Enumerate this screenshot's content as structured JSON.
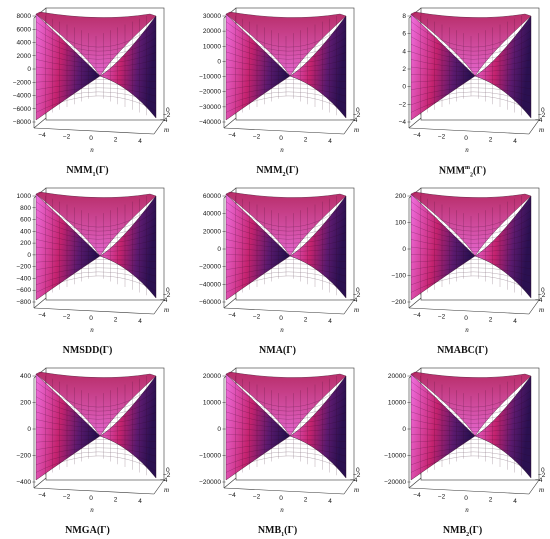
{
  "chart_data": [
    {
      "type": "surface",
      "caption": {
        "base": "NMM",
        "sub": "1",
        "sup": "",
        "suffix": "(Γ)"
      },
      "xlabel": "n",
      "ylabel": "m",
      "zticks": [
        "8000",
        "6000",
        "4000",
        "2000",
        "0",
        "−2000",
        "−4000",
        "−6000",
        "−8000"
      ],
      "xticks": [
        "−4",
        "−2",
        "0",
        "2",
        "4"
      ],
      "yticks": [
        "−4",
        "−2",
        "0",
        "2",
        "4"
      ],
      "yticks_shown": 3,
      "zlim": [
        -8000,
        8000
      ]
    },
    {
      "type": "surface",
      "caption": {
        "base": "NMM",
        "sub": "2",
        "sup": "",
        "suffix": "(Γ)"
      },
      "xlabel": "n",
      "ylabel": "m",
      "zticks": [
        "30000",
        "20000",
        "10000",
        "0",
        "−10000",
        "−20000",
        "−30000",
        "−40000"
      ],
      "xticks": [
        "−4",
        "−2",
        "0",
        "2",
        "4"
      ],
      "yticks": [
        "−4",
        "−2",
        "0",
        "2",
        "4"
      ],
      "yticks_shown": 3,
      "zlim": [
        -40000,
        30000
      ]
    },
    {
      "type": "surface",
      "caption": {
        "base": "NMM",
        "sub": "2",
        "sup": "m",
        "suffix": "(Γ)"
      },
      "xlabel": "n",
      "ylabel": "m",
      "zticks": [
        "8",
        "6",
        "4",
        "2",
        "0",
        "−2",
        "−4"
      ],
      "xticks": [
        "−4",
        "−2",
        "0",
        "2",
        "4"
      ],
      "yticks": [
        "−4",
        "−2",
        "0",
        "2",
        "4"
      ],
      "yticks_shown": 3,
      "zlim": [
        -4,
        8
      ]
    },
    {
      "type": "surface",
      "caption": {
        "base": "NMSDD",
        "sub": "",
        "sup": "",
        "suffix": "(Γ)"
      },
      "xlabel": "n",
      "ylabel": "m",
      "zticks": [
        "1000",
        "800",
        "600",
        "400",
        "200",
        "0",
        "−200",
        "−400",
        "−600",
        "−800"
      ],
      "xticks": [
        "−4",
        "−2",
        "0",
        "2",
        "4"
      ],
      "yticks": [
        "−4",
        "−2",
        "0",
        "2",
        "4"
      ],
      "yticks_shown": 3,
      "zlim": [
        -800,
        1000
      ]
    },
    {
      "type": "surface",
      "caption": {
        "base": "NMA",
        "sub": "",
        "sup": "",
        "suffix": "(Γ)"
      },
      "xlabel": "n",
      "ylabel": "m",
      "zticks": [
        "60000",
        "40000",
        "20000",
        "0",
        "−20000",
        "−40000",
        "−60000"
      ],
      "xticks": [
        "−4",
        "−2",
        "0",
        "2",
        "4"
      ],
      "yticks": [
        "−4",
        "−2",
        "0",
        "2",
        "4"
      ],
      "yticks_shown": 3,
      "zlim": [
        -60000,
        60000
      ]
    },
    {
      "type": "surface",
      "caption": {
        "base": "NMABC",
        "sub": "",
        "sup": "",
        "suffix": "(Γ)"
      },
      "xlabel": "n",
      "ylabel": "m",
      "zticks": [
        "200",
        "100",
        "0",
        "−100",
        "−200"
      ],
      "xticks": [
        "−4",
        "−2",
        "0",
        "2",
        "4"
      ],
      "yticks": [
        "−4",
        "−2",
        "0",
        "2",
        "4"
      ],
      "yticks_shown": 3,
      "zlim": [
        -200,
        200
      ]
    },
    {
      "type": "surface",
      "caption": {
        "base": "NMGA",
        "sub": "",
        "sup": "",
        "suffix": "(Γ)"
      },
      "xlabel": "n",
      "ylabel": "m",
      "zticks": [
        "400",
        "200",
        "0",
        "−200",
        "−400"
      ],
      "xticks": [
        "−4",
        "−2",
        "0",
        "2",
        "4"
      ],
      "yticks": [
        "−4",
        "−2",
        "0",
        "2",
        "4"
      ],
      "yticks_shown": 3,
      "zlim": [
        -400,
        400
      ]
    },
    {
      "type": "surface",
      "caption": {
        "base": "NMB",
        "sub": "1",
        "sup": "",
        "suffix": "(Γ)"
      },
      "xlabel": "n",
      "ylabel": "m",
      "zticks": [
        "20000",
        "10000",
        "0",
        "−10000",
        "−20000"
      ],
      "xticks": [
        "−4",
        "−2",
        "0",
        "2",
        "4"
      ],
      "yticks": [
        "−4",
        "−2",
        "0",
        "2",
        "4"
      ],
      "yticks_shown": 3,
      "zlim": [
        -20000,
        20000
      ]
    },
    {
      "type": "surface",
      "caption": {
        "base": "NMB",
        "sub": "2",
        "sup": "",
        "suffix": "(Γ)"
      },
      "xlabel": "n",
      "ylabel": "m",
      "zticks": [
        "20000",
        "10000",
        "0",
        "−10000",
        "−20000"
      ],
      "xticks": [
        "−4",
        "−2",
        "0",
        "2",
        "4"
      ],
      "yticks": [
        "−4",
        "−2",
        "0",
        "2",
        "4"
      ],
      "yticks_shown": 3,
      "zlim": [
        -20000,
        20000
      ]
    }
  ]
}
